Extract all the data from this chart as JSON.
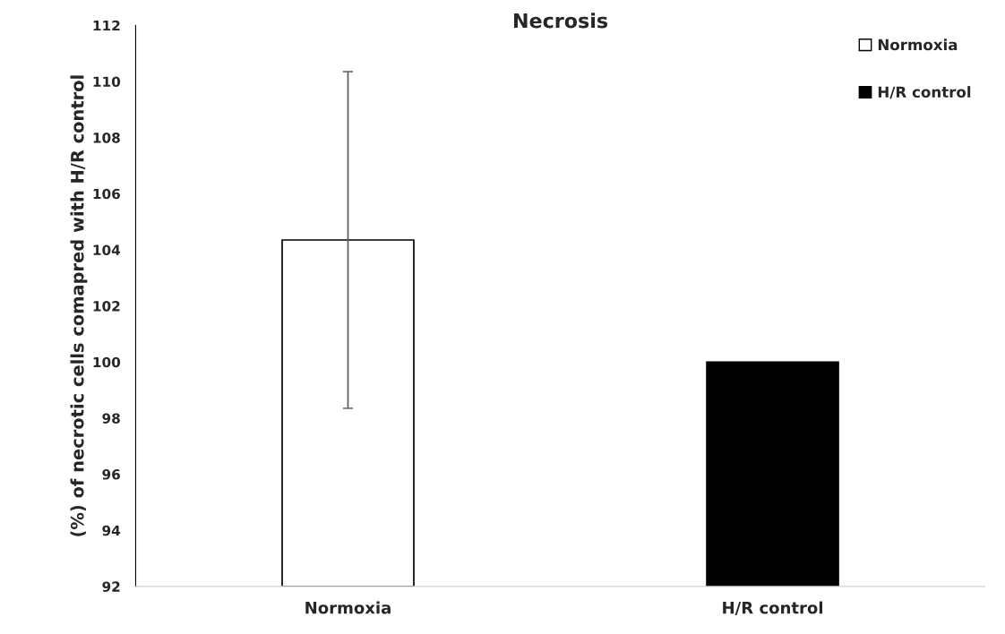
{
  "chart_data": {
    "type": "bar",
    "title": "Necrosis",
    "ylabel": "(%) of necrotic cells comapred with H/R control",
    "categories": [
      "Normoxia",
      "H/R control"
    ],
    "series": [
      {
        "name": "Normoxia",
        "color": "#ffffff",
        "values": [
          104.35,
          null
        ],
        "errors": [
          6.0,
          null
        ]
      },
      {
        "name": "H/R control",
        "color": "#000000",
        "values": [
          null,
          100
        ]
      }
    ],
    "ylim": [
      92,
      112
    ],
    "yticks": [
      92,
      94,
      96,
      98,
      100,
      102,
      104,
      106,
      108,
      110,
      112
    ],
    "grid": false,
    "legend": "top right"
  }
}
